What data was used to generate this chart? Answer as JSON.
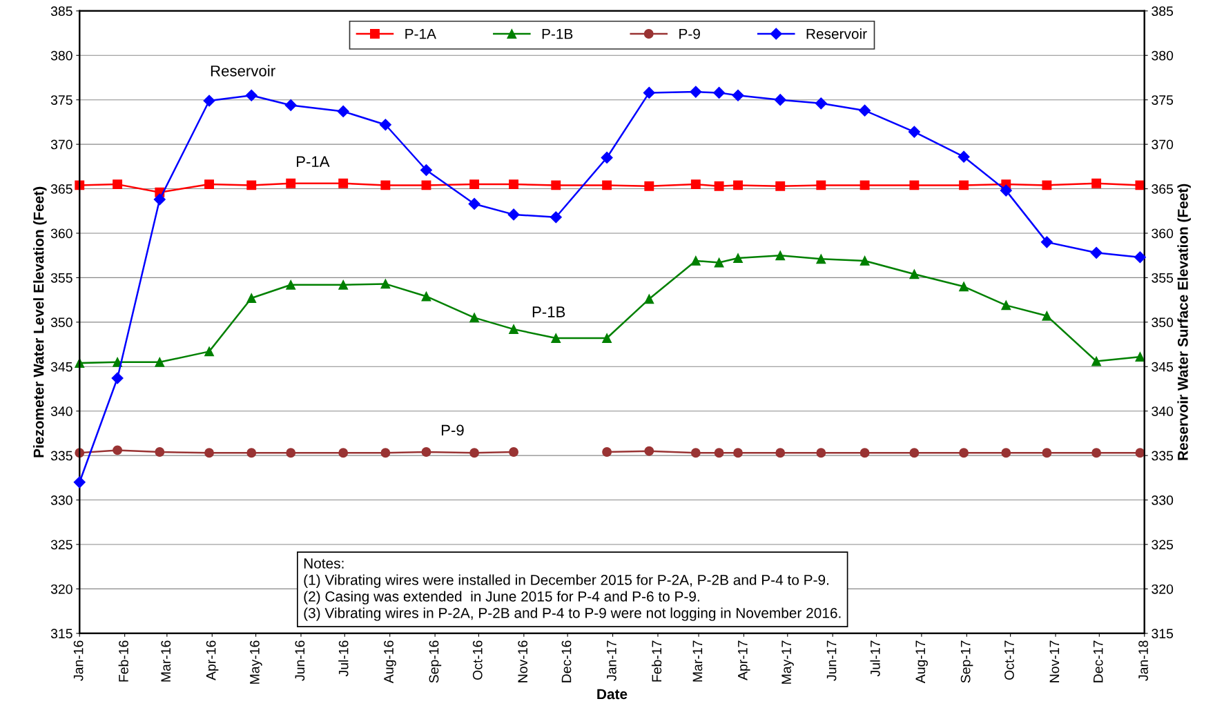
{
  "chart_data": {
    "type": "line",
    "x": [
      "2016-01-01",
      "2016-01-27",
      "2016-02-25",
      "2016-03-30",
      "2016-04-28",
      "2016-05-25",
      "2016-06-30",
      "2016-07-29",
      "2016-08-26",
      "2016-09-28",
      "2016-10-25",
      "2016-11-23",
      "2016-12-28",
      "2017-01-26",
      "2017-02-27",
      "2017-03-15",
      "2017-03-28",
      "2017-04-26",
      "2017-05-24",
      "2017-06-23",
      "2017-07-27",
      "2017-08-30",
      "2017-09-28",
      "2017-10-26",
      "2017-11-29",
      "2017-12-29"
    ],
    "series": [
      {
        "name": "P-1A",
        "color": "#ff0000",
        "marker": "square",
        "values": [
          365.4,
          365.5,
          364.6,
          365.5,
          365.4,
          365.6,
          365.6,
          365.4,
          365.4,
          365.5,
          365.5,
          365.4,
          365.4,
          365.3,
          365.5,
          365.3,
          365.4,
          365.3,
          365.4,
          365.4,
          365.4,
          365.4,
          365.5,
          365.4,
          365.6,
          365.4
        ]
      },
      {
        "name": "P-1B",
        "color": "#008000",
        "marker": "triangle",
        "values": [
          345.4,
          345.5,
          345.5,
          346.7,
          352.7,
          354.2,
          354.2,
          354.3,
          352.9,
          350.5,
          349.2,
          348.2,
          348.2,
          352.6,
          356.9,
          356.7,
          357.2,
          357.5,
          357.1,
          356.9,
          355.4,
          354.0,
          351.9,
          350.7,
          345.6,
          346.1
        ]
      },
      {
        "name": "P-9",
        "color": "#993333",
        "marker": "circle",
        "values": [
          335.3,
          335.6,
          335.4,
          335.3,
          335.3,
          335.3,
          335.3,
          335.3,
          335.4,
          335.3,
          335.4,
          null,
          335.4,
          335.5,
          335.3,
          335.3,
          335.3,
          335.3,
          335.3,
          335.3,
          335.3,
          335.3,
          335.3,
          335.3,
          335.3,
          335.3
        ]
      },
      {
        "name": "Reservoir",
        "color": "#0000ff",
        "marker": "diamond",
        "axis": "y2",
        "values": [
          332.0,
          343.7,
          363.8,
          374.9,
          375.5,
          374.4,
          373.7,
          372.2,
          367.1,
          363.3,
          362.1,
          361.8,
          368.5,
          375.8,
          375.9,
          375.8,
          375.5,
          375.0,
          374.6,
          373.8,
          371.4,
          368.6,
          364.8,
          359.0,
          357.8,
          357.3
        ]
      }
    ],
    "xlabel": "Date",
    "ylabel": "Piezometer Water Level Elevation (Feet)",
    "y2label": "Reservoir Water Surface Elevation (Feet)",
    "xlim": [
      "2016-01-01",
      "2018-01-01"
    ],
    "xticks": [
      {
        "value": "2016-01-01",
        "label": "Jan-16"
      },
      {
        "value": "2016-02-01",
        "label": "Feb-16"
      },
      {
        "value": "2016-03-01",
        "label": "Mar-16"
      },
      {
        "value": "2016-04-01",
        "label": "Apr-16"
      },
      {
        "value": "2016-05-01",
        "label": "May-16"
      },
      {
        "value": "2016-06-01",
        "label": "Jun-16"
      },
      {
        "value": "2016-07-01",
        "label": "Jul-16"
      },
      {
        "value": "2016-08-01",
        "label": "Aug-16"
      },
      {
        "value": "2016-09-01",
        "label": "Sep-16"
      },
      {
        "value": "2016-10-01",
        "label": "Oct-16"
      },
      {
        "value": "2016-11-01",
        "label": "Nov-16"
      },
      {
        "value": "2016-12-01",
        "label": "Dec-16"
      },
      {
        "value": "2017-01-01",
        "label": "Jan-17"
      },
      {
        "value": "2017-02-01",
        "label": "Feb-17"
      },
      {
        "value": "2017-03-01",
        "label": "Mar-17"
      },
      {
        "value": "2017-04-01",
        "label": "Apr-17"
      },
      {
        "value": "2017-05-01",
        "label": "May-17"
      },
      {
        "value": "2017-06-01",
        "label": "Jun-17"
      },
      {
        "value": "2017-07-01",
        "label": "Jul-17"
      },
      {
        "value": "2017-08-01",
        "label": "Aug-17"
      },
      {
        "value": "2017-09-01",
        "label": "Sep-17"
      },
      {
        "value": "2017-10-01",
        "label": "Oct-17"
      },
      {
        "value": "2017-11-01",
        "label": "Nov-17"
      },
      {
        "value": "2017-12-01",
        "label": "Dec-17"
      },
      {
        "value": "2018-01-01",
        "label": "Jan-18"
      }
    ],
    "ylim": [
      315,
      385
    ],
    "yticks": [
      315,
      320,
      325,
      330,
      335,
      340,
      345,
      350,
      355,
      360,
      365,
      370,
      375,
      380,
      385
    ],
    "y2lim": [
      315,
      385
    ],
    "y2ticks": [
      315,
      320,
      325,
      330,
      335,
      340,
      345,
      350,
      355,
      360,
      365,
      370,
      375,
      380,
      385
    ],
    "grid": "y",
    "legend": "top",
    "line_style": "solid",
    "annotations": [
      "P-1A",
      "P-1B",
      "P-9",
      "Reservoir",
      "Notes:",
      "(1) Vibrating wires were installed in December 2015 for P-2A, P-2B and P-4 to P-9.",
      "(2) Casing was extended  in June 2015 for P-4 and P-6 to P-9.",
      "(3) Vibrating wires in P-2A, P-2B and P-4 to P-9 were not logging in November 2016."
    ]
  }
}
